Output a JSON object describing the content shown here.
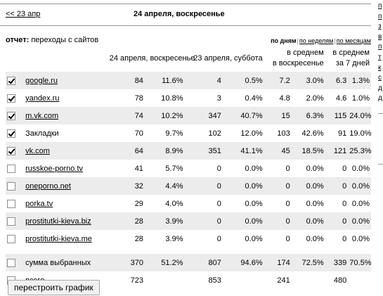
{
  "nav": {
    "prev_link": "<< 23 апр",
    "date_title": "24 апреля, воскресенье"
  },
  "report": {
    "label": "отчет:",
    "value": "переходы с сайтов",
    "modes": {
      "by_days": "по дням",
      "by_weeks": "по неделям",
      "by_months": "по месяцам"
    }
  },
  "table": {
    "headers": {
      "day1": "24 апреля, воскресенье",
      "day2": "23 апреля, суббота",
      "avg_weekday_line1": "в среднем",
      "avg_weekday_line2": "в воскресенье",
      "avg_week_line1": "в среднем",
      "avg_week_line2": "за 7 дней"
    },
    "rows": [
      {
        "checked": true,
        "name": "google.ru",
        "link": true,
        "v1": "84",
        "p1": "11.6%",
        "v2": "4",
        "p2": "0.5%",
        "v3": "7.2",
        "p3": "3.0%",
        "v4": "6.3",
        "p4": "1.3%"
      },
      {
        "checked": true,
        "name": "yandex.ru",
        "link": true,
        "v1": "78",
        "p1": "10.8%",
        "v2": "3",
        "p2": "0.4%",
        "v3": "4.8",
        "p3": "2.0%",
        "v4": "4.6",
        "p4": "1.0%"
      },
      {
        "checked": true,
        "name": "m.vk.com",
        "link": true,
        "v1": "74",
        "p1": "10.2%",
        "v2": "347",
        "p2": "40.7%",
        "v3": "15",
        "p3": "6.3%",
        "v4": "115",
        "p4": "24.0%"
      },
      {
        "checked": true,
        "name": "Закладки",
        "link": false,
        "v1": "70",
        "p1": "9.7%",
        "v2": "102",
        "p2": "12.0%",
        "v3": "103",
        "p3": "42.6%",
        "v4": "91",
        "p4": "19.0%"
      },
      {
        "checked": true,
        "name": "vk.com",
        "link": true,
        "v1": "64",
        "p1": "8.9%",
        "v2": "351",
        "p2": "41.1%",
        "v3": "45",
        "p3": "18.5%",
        "v4": "121",
        "p4": "25.3%"
      },
      {
        "checked": false,
        "name": "russkoe-porno.tv",
        "link": true,
        "v1": "41",
        "p1": "5.7%",
        "v2": "0",
        "p2": "0.0%",
        "v3": "0",
        "p3": "0.0%",
        "v4": "0",
        "p4": "0.0%"
      },
      {
        "checked": false,
        "name": "oneporno.net",
        "link": true,
        "v1": "32",
        "p1": "4.4%",
        "v2": "0",
        "p2": "0.0%",
        "v3": "0",
        "p3": "0.0%",
        "v4": "0",
        "p4": "0.0%"
      },
      {
        "checked": false,
        "name": "porka.tv",
        "link": true,
        "v1": "29",
        "p1": "4.0%",
        "v2": "0",
        "p2": "0.0%",
        "v3": "0",
        "p3": "0.0%",
        "v4": "0",
        "p4": "0.0%"
      },
      {
        "checked": false,
        "name": "prostitutki-kieva.biz",
        "link": true,
        "v1": "28",
        "p1": "3.9%",
        "v2": "0",
        "p2": "0.0%",
        "v3": "0",
        "p3": "0.0%",
        "v4": "0",
        "p4": "0.0%"
      },
      {
        "checked": false,
        "name": "prostitutki-kieva.me",
        "link": true,
        "v1": "28",
        "p1": "3.9%",
        "v2": "0",
        "p2": "0.0%",
        "v3": "0",
        "p3": "0.0%",
        "v4": "0",
        "p4": "0.0%"
      }
    ],
    "summary": [
      {
        "checked": false,
        "name": "сумма выбранных",
        "v1": "370",
        "p1": "51.2%",
        "v2": "807",
        "p2": "94.6%",
        "v3": "174",
        "p3": "72.5%",
        "v4": "339",
        "p4": "70.5%"
      },
      {
        "checked": false,
        "name": "всего",
        "v1": "723",
        "p1": "",
        "v2": "853",
        "p2": "",
        "v3": "241",
        "p3": "",
        "v4": "480",
        "p4": ""
      }
    ]
  },
  "rebuild_button": "перестроить график",
  "right_strip": [
    "п",
    "п",
    "з",
    "в",
    "п",
    "т",
    "к",
    "с",
    "д",
    "д"
  ]
}
